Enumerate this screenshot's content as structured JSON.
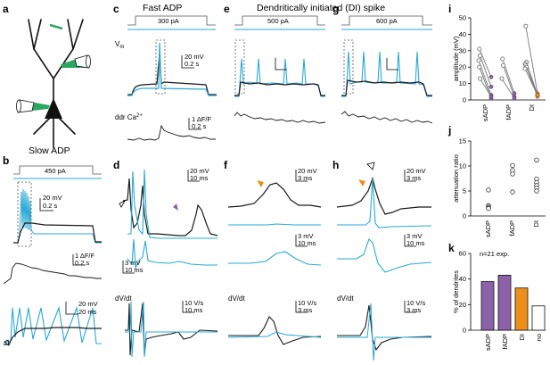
{
  "panels": {
    "a": "a",
    "b": "b",
    "c": "c",
    "d": "d",
    "e": "e",
    "f": "f",
    "g": "g",
    "h": "h",
    "i": "i",
    "j": "j",
    "k": "k"
  },
  "titles": {
    "fast_adp": "Fast ADP",
    "di_spike": "Dendritically initiated (DI) spike",
    "slow_adp": "Slow ADP"
  },
  "stimuli": {
    "c": "300 pA",
    "e": "500 pA",
    "g": "600 pA",
    "b": "450 pA"
  },
  "trace_labels": {
    "vm": "V",
    "vm_sub": "m",
    "ca": "ddr Ca",
    "ca_sup": "2+",
    "dvdt_d": "dV/dt",
    "dvdt_f": "dV/dt",
    "dvdt_h": "dV/dt"
  },
  "scalebars": {
    "c_v": "20 mV",
    "c_t": "0.2 s",
    "c_ca": "1 ΔF/F",
    "c_cat": "0.2 s",
    "b_v": "20 mV",
    "b_t": "0.2 s",
    "b_ca": "1 ΔF/F",
    "b_cat": "0.2 s",
    "b_zv": "20 mV",
    "b_zt": "20 ms",
    "d_v": "20 mV",
    "d_t": "10 ms",
    "d_v2": "3 mV",
    "d_t2": "10 ms",
    "d_dv": "10 V/s",
    "d_dt": "10 ms",
    "f_v": "20 mV",
    "f_t": "3 ms",
    "f_v2": "3 mV",
    "f_t2": "10 ms",
    "f_dv": "10 V/s",
    "f_dt": "3 ms",
    "h_v": "20 mV",
    "h_t": "3 ms",
    "h_v2": "3 mV",
    "h_t2": "10 ms",
    "h_dv": "10 V/s",
    "h_dt": "3 ms"
  },
  "colors": {
    "cyan": "#29a9d6",
    "black": "#1a1a1a",
    "purple": "#8b62a9",
    "orange": "#ef8f1b",
    "green": "#2aa860",
    "grey": "#9a9a9a"
  },
  "chart_data": [
    {
      "id": "i",
      "type": "scatter",
      "ylabel": "amplitude (mV)",
      "ylim": [
        0,
        50
      ],
      "yticks": [
        "0",
        "10",
        "20",
        "30",
        "40",
        "50"
      ],
      "categories": [
        "sADP",
        "fADP",
        "DI"
      ],
      "pairs": [
        {
          "cat": "sADP",
          "soma": 31,
          "dend": 14
        },
        {
          "cat": "sADP",
          "soma": 27,
          "dend": 8
        },
        {
          "cat": "sADP",
          "soma": 24,
          "dend": 3
        },
        {
          "cat": "sADP",
          "soma": 20,
          "dend": 1
        },
        {
          "cat": "sADP",
          "soma": 13,
          "dend": 2
        },
        {
          "cat": "fADP",
          "soma": 25,
          "dend": 4
        },
        {
          "cat": "fADP",
          "soma": 21,
          "dend": 2
        },
        {
          "cat": "fADP",
          "soma": 13,
          "dend": 1
        },
        {
          "cat": "DI",
          "soma": 45,
          "dend": 4
        },
        {
          "cat": "DI",
          "soma": 23,
          "dend": 3
        },
        {
          "cat": "DI",
          "soma": 22,
          "dend": 3
        },
        {
          "cat": "DI",
          "soma": 21,
          "dend": 2
        },
        {
          "cat": "DI",
          "soma": 20,
          "dend": 3
        },
        {
          "cat": "DI",
          "soma": 19,
          "dend": 3
        }
      ]
    },
    {
      "id": "j",
      "type": "scatter",
      "ylabel": "attenuation ratio",
      "ylim": [
        0,
        15
      ],
      "yticks": [
        "0",
        "5",
        "10",
        "15"
      ],
      "categories": [
        "sADP",
        "fADP",
        "DI"
      ],
      "points": [
        {
          "cat": "sADP",
          "value": 5.2
        },
        {
          "cat": "sADP",
          "value": 2.1
        },
        {
          "cat": "sADP",
          "value": 1.8
        },
        {
          "cat": "sADP",
          "value": 1.6
        },
        {
          "cat": "sADP",
          "value": 1.5
        },
        {
          "cat": "fADP",
          "value": 10.1
        },
        {
          "cat": "fADP",
          "value": 9.1
        },
        {
          "cat": "fADP",
          "value": 8.4
        },
        {
          "cat": "fADP",
          "value": 4.8
        },
        {
          "cat": "DI",
          "value": 11.2
        },
        {
          "cat": "DI",
          "value": 7.4
        },
        {
          "cat": "DI",
          "value": 6.7
        },
        {
          "cat": "DI",
          "value": 6.1
        },
        {
          "cat": "DI",
          "value": 5.6
        },
        {
          "cat": "DI",
          "value": 5.0
        }
      ]
    },
    {
      "id": "k",
      "type": "bar",
      "title": "n=21 exp.",
      "ylabel": "% of dendrites",
      "ylim": [
        0,
        60
      ],
      "yticks": [
        "0",
        "20",
        "40",
        "60"
      ],
      "categories": [
        "sADP",
        "fADP",
        "DI",
        "no"
      ],
      "values": [
        38,
        43,
        33,
        19
      ],
      "bar_colors": [
        "#8b62a9",
        "#8b62a9",
        "#ef8f1b",
        "#ffffff"
      ]
    }
  ]
}
